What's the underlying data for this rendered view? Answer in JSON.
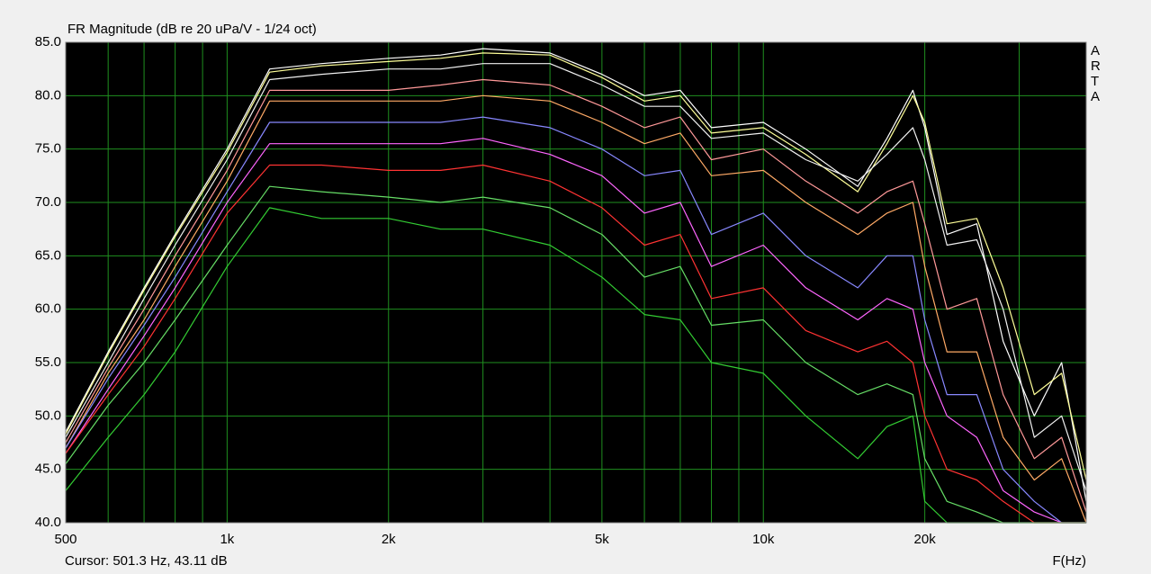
{
  "chart_data": {
    "type": "line",
    "title": "FR Magnitude (dB re 20 uPa/V - 1/24 oct)",
    "watermark": "ARTA",
    "status": "Cursor: 501.3 Hz, 43.11 dB",
    "xlabel": "F(Hz)",
    "xscale": "log",
    "xlim": [
      500,
      40000
    ],
    "ylim": [
      40,
      85
    ],
    "xticks": [
      500,
      {
        "value": 1000,
        "label": "1k"
      },
      {
        "value": 2000,
        "label": "2k"
      },
      {
        "value": 5000,
        "label": "5k"
      },
      {
        "value": 10000,
        "label": "10k"
      },
      {
        "value": 20000,
        "label": "20k"
      }
    ],
    "x_minor_ticks": [
      600,
      700,
      800,
      900,
      3000,
      4000,
      6000,
      7000,
      8000,
      9000,
      30000
    ],
    "yticks": [
      {
        "value": 40,
        "label": "40.0"
      },
      {
        "value": 45,
        "label": "45.0"
      },
      {
        "value": 50,
        "label": "50.0"
      },
      {
        "value": 55,
        "label": "55.0"
      },
      {
        "value": 60,
        "label": "60.0"
      },
      {
        "value": 65,
        "label": "65.0"
      },
      {
        "value": 70,
        "label": "70.0"
      },
      {
        "value": 75,
        "label": "75.0"
      },
      {
        "value": 80,
        "label": "80.0"
      },
      {
        "value": 85,
        "label": "85.0"
      }
    ],
    "grid": true,
    "background": "#000000",
    "grid_color": "#1f8f1f",
    "x": [
      500,
      600,
      700,
      800,
      1000,
      1200,
      1500,
      2000,
      2500,
      3000,
      4000,
      5000,
      6000,
      7000,
      8000,
      10000,
      12000,
      15000,
      17000,
      19000,
      20000,
      22000,
      25000,
      28000,
      32000,
      36000,
      40000
    ],
    "series": [
      {
        "color": "#ffffff",
        "values": [
          48.5,
          56,
          62,
          67,
          75,
          82.5,
          83,
          83.5,
          83.8,
          84.4,
          84,
          82,
          80,
          80.5,
          77,
          77.5,
          75,
          71.5,
          76,
          80.5,
          77,
          67,
          68,
          57,
          50,
          55,
          42
        ]
      },
      {
        "color": "#ffff99",
        "values": [
          48.3,
          55.8,
          61.8,
          66.8,
          74.7,
          82.2,
          82.8,
          83.2,
          83.5,
          84,
          83.8,
          81.7,
          79.5,
          80,
          76.5,
          77,
          74.5,
          71,
          75.5,
          80,
          77.5,
          68,
          68.5,
          62,
          52,
          54,
          44
        ]
      },
      {
        "color": "#f0f0f0",
        "values": [
          48,
          55,
          61,
          66,
          74,
          81.5,
          82,
          82.5,
          82.5,
          83,
          83,
          81,
          79,
          79,
          76,
          76.5,
          74,
          72,
          74.5,
          77,
          74,
          66,
          66.5,
          60,
          48,
          50,
          43
        ]
      },
      {
        "color": "#ff9999",
        "values": [
          47.5,
          54.5,
          60,
          65,
          73,
          80.5,
          80.5,
          80.5,
          81,
          81.5,
          81,
          79,
          77,
          78,
          74,
          75,
          72,
          69,
          71,
          72,
          68,
          60,
          61,
          52,
          46,
          48,
          41
        ]
      },
      {
        "color": "#ffaa66",
        "values": [
          47,
          54,
          59,
          64,
          72,
          79.5,
          79.5,
          79.5,
          79.5,
          80,
          79.5,
          77.5,
          75.5,
          76.5,
          72.5,
          73,
          70,
          67,
          69,
          70,
          64,
          56,
          56,
          48,
          44,
          46,
          40
        ]
      },
      {
        "color": "#8888ff",
        "values": [
          47,
          53.5,
          58.5,
          63,
          71,
          77.5,
          77.5,
          77.5,
          77.5,
          78,
          77,
          75,
          72.5,
          73,
          67,
          69,
          65,
          62,
          65,
          65,
          59,
          52,
          52,
          45,
          42,
          40,
          40
        ]
      },
      {
        "color": "#ff66ff",
        "values": [
          46.5,
          52.5,
          57.5,
          62,
          70,
          75.5,
          75.5,
          75.5,
          75.5,
          76,
          74.5,
          72.5,
          69,
          70,
          64,
          66,
          62,
          59,
          61,
          60,
          55,
          50,
          48,
          43,
          41,
          40,
          40
        ]
      },
      {
        "color": "#ff3333",
        "values": [
          46.5,
          52,
          56.5,
          61,
          69,
          73.5,
          73.5,
          73,
          73,
          73.5,
          72,
          69.5,
          66,
          67,
          61,
          62,
          58,
          56,
          57,
          55,
          50,
          45,
          44,
          42,
          40,
          40,
          40
        ]
      },
      {
        "color": "#66dd66",
        "values": [
          45.5,
          51,
          55,
          59,
          66,
          71.5,
          71,
          70.5,
          70,
          70.5,
          69.5,
          67,
          63,
          64,
          58.5,
          59,
          55,
          52,
          53,
          52,
          46,
          42,
          41,
          40,
          40,
          40,
          40
        ]
      },
      {
        "color": "#33cc33",
        "values": [
          43,
          48,
          52,
          56,
          64,
          69.5,
          68.5,
          68.5,
          67.5,
          67.5,
          66,
          63,
          59.5,
          59,
          55,
          54,
          50,
          46,
          49,
          50,
          42,
          40,
          40,
          40,
          40,
          40,
          40
        ]
      }
    ]
  }
}
